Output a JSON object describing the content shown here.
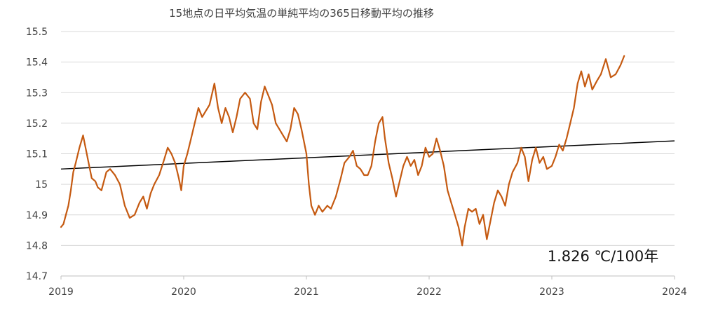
{
  "chart_data": {
    "type": "line",
    "title": "15地点の日平均気温の単純平均の365日移動平均の推移",
    "xlabel": "",
    "ylabel": "",
    "xlim": [
      2019,
      2024
    ],
    "ylim": [
      14.7,
      15.5
    ],
    "xticks": [
      "2019",
      "2020",
      "2021",
      "2022",
      "2023",
      "2024"
    ],
    "yticks": [
      "14.7",
      "14.8",
      "14.9",
      "15",
      "15.1",
      "15.2",
      "15.3",
      "15.4",
      "15.5"
    ],
    "grid": true,
    "legend": "none",
    "annotation": "1.826 ℃/100年",
    "colors": {
      "series": "#C55A11",
      "trend": "#000000",
      "grid": "#D9D9D9",
      "axis": "#BFBFBF"
    },
    "series": [
      {
        "points": [
          [
            2019.0,
            14.86
          ],
          [
            2019.02,
            14.87
          ],
          [
            2019.04,
            14.9
          ],
          [
            2019.06,
            14.93
          ],
          [
            2019.08,
            14.98
          ],
          [
            2019.1,
            15.04
          ],
          [
            2019.12,
            15.07
          ],
          [
            2019.15,
            15.12
          ],
          [
            2019.18,
            15.16
          ],
          [
            2019.2,
            15.12
          ],
          [
            2019.22,
            15.08
          ],
          [
            2019.25,
            15.02
          ],
          [
            2019.28,
            15.01
          ],
          [
            2019.3,
            14.99
          ],
          [
            2019.33,
            14.98
          ],
          [
            2019.37,
            15.04
          ],
          [
            2019.4,
            15.05
          ],
          [
            2019.44,
            15.03
          ],
          [
            2019.48,
            15.0
          ],
          [
            2019.52,
            14.93
          ],
          [
            2019.56,
            14.89
          ],
          [
            2019.6,
            14.9
          ],
          [
            2019.64,
            14.94
          ],
          [
            2019.67,
            14.96
          ],
          [
            2019.7,
            14.92
          ],
          [
            2019.73,
            14.97
          ],
          [
            2019.76,
            15.0
          ],
          [
            2019.8,
            15.03
          ],
          [
            2019.84,
            15.08
          ],
          [
            2019.87,
            15.12
          ],
          [
            2019.9,
            15.1
          ],
          [
            2019.93,
            15.07
          ],
          [
            2019.96,
            15.02
          ],
          [
            2019.98,
            14.98
          ],
          [
            2020.0,
            15.06
          ],
          [
            2020.03,
            15.1
          ],
          [
            2020.06,
            15.15
          ],
          [
            2020.09,
            15.2
          ],
          [
            2020.12,
            15.25
          ],
          [
            2020.15,
            15.22
          ],
          [
            2020.18,
            15.24
          ],
          [
            2020.21,
            15.26
          ],
          [
            2020.25,
            15.33
          ],
          [
            2020.28,
            15.25
          ],
          [
            2020.31,
            15.2
          ],
          [
            2020.34,
            15.25
          ],
          [
            2020.37,
            15.22
          ],
          [
            2020.4,
            15.17
          ],
          [
            2020.43,
            15.22
          ],
          [
            2020.46,
            15.28
          ],
          [
            2020.5,
            15.3
          ],
          [
            2020.54,
            15.28
          ],
          [
            2020.57,
            15.2
          ],
          [
            2020.6,
            15.18
          ],
          [
            2020.63,
            15.27
          ],
          [
            2020.66,
            15.32
          ],
          [
            2020.69,
            15.29
          ],
          [
            2020.72,
            15.26
          ],
          [
            2020.75,
            15.2
          ],
          [
            2020.78,
            15.18
          ],
          [
            2020.81,
            15.16
          ],
          [
            2020.84,
            15.14
          ],
          [
            2020.87,
            15.18
          ],
          [
            2020.9,
            15.25
          ],
          [
            2020.93,
            15.23
          ],
          [
            2020.96,
            15.18
          ],
          [
            2021.0,
            15.1
          ],
          [
            2021.02,
            15.0
          ],
          [
            2021.04,
            14.93
          ],
          [
            2021.07,
            14.9
          ],
          [
            2021.1,
            14.93
          ],
          [
            2021.13,
            14.91
          ],
          [
            2021.17,
            14.93
          ],
          [
            2021.2,
            14.92
          ],
          [
            2021.24,
            14.96
          ],
          [
            2021.28,
            15.02
          ],
          [
            2021.31,
            15.07
          ],
          [
            2021.35,
            15.09
          ],
          [
            2021.38,
            15.11
          ],
          [
            2021.41,
            15.06
          ],
          [
            2021.44,
            15.05
          ],
          [
            2021.47,
            15.03
          ],
          [
            2021.5,
            15.03
          ],
          [
            2021.53,
            15.06
          ],
          [
            2021.56,
            15.14
          ],
          [
            2021.59,
            15.2
          ],
          [
            2021.62,
            15.22
          ],
          [
            2021.64,
            15.15
          ],
          [
            2021.67,
            15.07
          ],
          [
            2021.7,
            15.02
          ],
          [
            2021.73,
            14.96
          ],
          [
            2021.76,
            15.01
          ],
          [
            2021.79,
            15.06
          ],
          [
            2021.82,
            15.09
          ],
          [
            2021.85,
            15.06
          ],
          [
            2021.88,
            15.08
          ],
          [
            2021.91,
            15.03
          ],
          [
            2021.94,
            15.06
          ],
          [
            2021.97,
            15.12
          ],
          [
            2022.0,
            15.09
          ],
          [
            2022.03,
            15.1
          ],
          [
            2022.06,
            15.15
          ],
          [
            2022.09,
            15.11
          ],
          [
            2022.12,
            15.06
          ],
          [
            2022.15,
            14.98
          ],
          [
            2022.18,
            14.94
          ],
          [
            2022.21,
            14.9
          ],
          [
            2022.24,
            14.86
          ],
          [
            2022.27,
            14.8
          ],
          [
            2022.29,
            14.86
          ],
          [
            2022.32,
            14.92
          ],
          [
            2022.35,
            14.91
          ],
          [
            2022.38,
            14.92
          ],
          [
            2022.41,
            14.87
          ],
          [
            2022.44,
            14.9
          ],
          [
            2022.47,
            14.82
          ],
          [
            2022.5,
            14.88
          ],
          [
            2022.53,
            14.94
          ],
          [
            2022.56,
            14.98
          ],
          [
            2022.59,
            14.96
          ],
          [
            2022.62,
            14.93
          ],
          [
            2022.65,
            15.0
          ],
          [
            2022.68,
            15.04
          ],
          [
            2022.72,
            15.07
          ],
          [
            2022.75,
            15.12
          ],
          [
            2022.78,
            15.09
          ],
          [
            2022.81,
            15.01
          ],
          [
            2022.84,
            15.08
          ],
          [
            2022.87,
            15.12
          ],
          [
            2022.9,
            15.07
          ],
          [
            2022.93,
            15.09
          ],
          [
            2022.96,
            15.05
          ],
          [
            2023.0,
            15.06
          ],
          [
            2023.03,
            15.09
          ],
          [
            2023.06,
            15.13
          ],
          [
            2023.09,
            15.11
          ],
          [
            2023.12,
            15.15
          ],
          [
            2023.15,
            15.2
          ],
          [
            2023.18,
            15.25
          ],
          [
            2023.21,
            15.33
          ],
          [
            2023.24,
            15.37
          ],
          [
            2023.27,
            15.32
          ],
          [
            2023.3,
            15.36
          ],
          [
            2023.33,
            15.31
          ],
          [
            2023.37,
            15.34
          ],
          [
            2023.4,
            15.36
          ],
          [
            2023.44,
            15.41
          ],
          [
            2023.48,
            15.35
          ],
          [
            2023.52,
            15.36
          ],
          [
            2023.56,
            15.39
          ],
          [
            2023.59,
            15.42
          ]
        ]
      }
    ],
    "trend": {
      "points": [
        [
          2019.0,
          15.05
        ],
        [
          2024.0,
          15.142
        ]
      ]
    }
  }
}
